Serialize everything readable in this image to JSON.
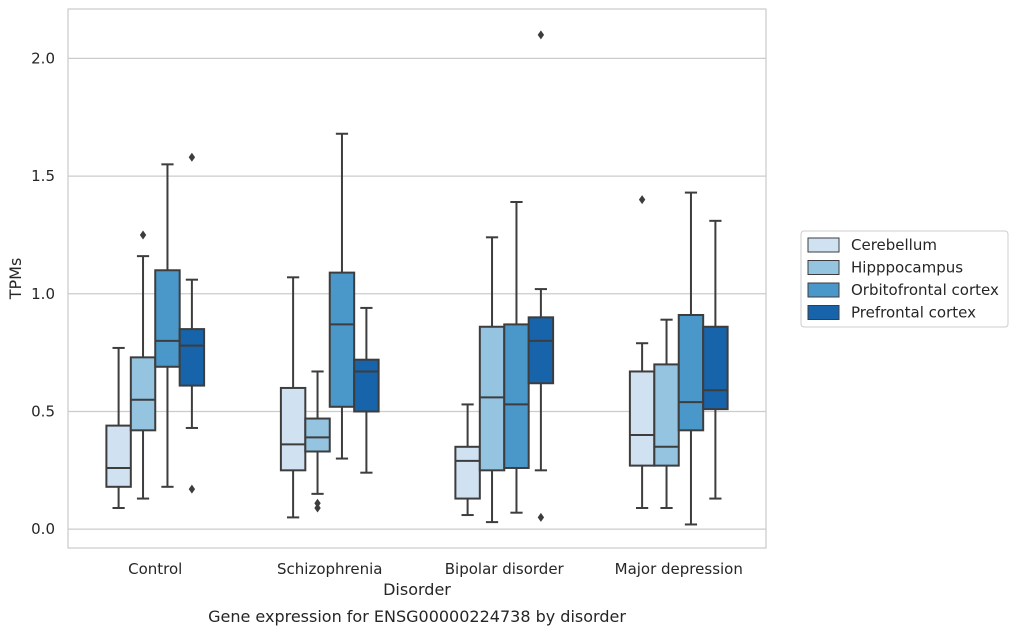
{
  "chart_data": {
    "type": "box",
    "title": "",
    "xlabel": "Disorder",
    "ylabel": "TPMs",
    "caption": "Gene expression for ENSG00000224738 by disorder",
    "ylim": [
      -0.08,
      2.21
    ],
    "yticks": [
      "0.0",
      "0.5",
      "1.0",
      "1.5",
      "2.0"
    ],
    "grid": "horizontal",
    "legend_position": "right",
    "categories": [
      "Control",
      "Schizophrenia",
      "Bipolar disorder",
      "Major depression"
    ],
    "series": [
      {
        "name": "Cerebellum",
        "color": "#d0e1f2",
        "boxes": [
          {
            "whislo": 0.09,
            "q1": 0.18,
            "med": 0.26,
            "q3": 0.44,
            "whishi": 0.77,
            "fliers": []
          },
          {
            "whislo": 0.05,
            "q1": 0.25,
            "med": 0.36,
            "q3": 0.6,
            "whishi": 1.07,
            "fliers": []
          },
          {
            "whislo": 0.06,
            "q1": 0.13,
            "med": 0.29,
            "q3": 0.35,
            "whishi": 0.53,
            "fliers": []
          },
          {
            "whislo": 0.09,
            "q1": 0.27,
            "med": 0.4,
            "q3": 0.67,
            "whishi": 0.79,
            "fliers": [
              1.4
            ]
          }
        ]
      },
      {
        "name": "Hipppocampus",
        "color": "#94c4df",
        "boxes": [
          {
            "whislo": 0.13,
            "q1": 0.42,
            "med": 0.55,
            "q3": 0.73,
            "whishi": 1.16,
            "fliers": [
              1.25
            ]
          },
          {
            "whislo": 0.15,
            "q1": 0.33,
            "med": 0.39,
            "q3": 0.47,
            "whishi": 0.67,
            "fliers": [
              0.09,
              0.11
            ]
          },
          {
            "whislo": 0.03,
            "q1": 0.25,
            "med": 0.56,
            "q3": 0.86,
            "whishi": 1.24,
            "fliers": []
          },
          {
            "whislo": 0.09,
            "q1": 0.27,
            "med": 0.35,
            "q3": 0.7,
            "whishi": 0.89,
            "fliers": []
          }
        ]
      },
      {
        "name": "Orbitofrontal cortex",
        "color": "#4a98c9",
        "boxes": [
          {
            "whislo": 0.18,
            "q1": 0.69,
            "med": 0.8,
            "q3": 1.1,
            "whishi": 1.55,
            "fliers": []
          },
          {
            "whislo": 0.3,
            "q1": 0.52,
            "med": 0.87,
            "q3": 1.09,
            "whishi": 1.68,
            "fliers": []
          },
          {
            "whislo": 0.07,
            "q1": 0.26,
            "med": 0.53,
            "q3": 0.87,
            "whishi": 1.39,
            "fliers": []
          },
          {
            "whislo": 0.02,
            "q1": 0.42,
            "med": 0.54,
            "q3": 0.91,
            "whishi": 1.43,
            "fliers": []
          }
        ]
      },
      {
        "name": "Prefrontal cortex",
        "color": "#1764ab",
        "boxes": [
          {
            "whislo": 0.43,
            "q1": 0.61,
            "med": 0.78,
            "q3": 0.85,
            "whishi": 1.06,
            "fliers": [
              1.58,
              0.17
            ]
          },
          {
            "whislo": 0.24,
            "q1": 0.5,
            "med": 0.67,
            "q3": 0.72,
            "whishi": 0.94,
            "fliers": []
          },
          {
            "whislo": 0.25,
            "q1": 0.62,
            "med": 0.8,
            "q3": 0.9,
            "whishi": 1.02,
            "fliers": [
              2.1,
              0.05
            ]
          },
          {
            "whislo": 0.13,
            "q1": 0.51,
            "med": 0.59,
            "q3": 0.86,
            "whishi": 1.31,
            "fliers": []
          }
        ]
      }
    ]
  }
}
